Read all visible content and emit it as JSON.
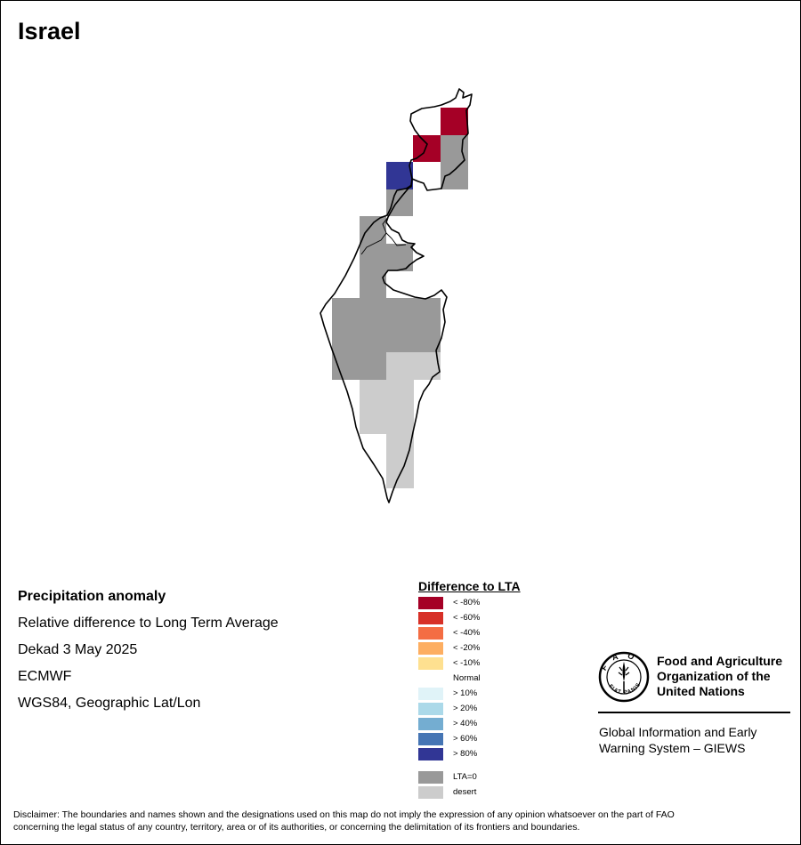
{
  "page": {
    "title": "Israel"
  },
  "info": {
    "heading": "Precipitation anomaly",
    "line1": "Relative difference to Long Term Average",
    "line2": "Dekad 3 May 2025",
    "line3": "ECMWF",
    "line4": "WGS84, Geographic Lat/Lon"
  },
  "legend": {
    "title": "Difference to LTA",
    "items": [
      {
        "label": "< -80%",
        "color": "#a50026"
      },
      {
        "label": "< -60%",
        "color": "#d73027"
      },
      {
        "label": "< -40%",
        "color": "#f46d43"
      },
      {
        "label": "< -20%",
        "color": "#fdae61"
      },
      {
        "label": "< -10%",
        "color": "#fee090"
      },
      {
        "label": "Normal",
        "color": "#ffffff"
      },
      {
        "label": "> 10%",
        "color": "#e0f3f8"
      },
      {
        "label": "> 20%",
        "color": "#abd9e9"
      },
      {
        "label": "> 40%",
        "color": "#74add1"
      },
      {
        "label": "> 60%",
        "color": "#4575b4"
      },
      {
        "label": "> 80%",
        "color": "#313695"
      },
      {
        "label": "LTA=0",
        "color": "#999999"
      },
      {
        "label": "desert",
        "color": "#cccccc"
      }
    ]
  },
  "fao": {
    "name_line1": "Food and Agriculture",
    "name_line2": "Organization of the",
    "name_line3": "United Nations",
    "logo_ring_text": "FIAT PANIS",
    "logo_letters": "FAO",
    "giews_line1": "Global Information and Early",
    "giews_line2": "Warning System – GIEWS"
  },
  "disclaimer": {
    "line1": "Disclaimer: The boundaries and names shown and the designations used on this map do not imply the expression of any opinion whatsoever on the part of FAO",
    "line2": "concerning the legal status of any country, territory, area or of its authorities, or concerning the delimitation of its frontiers and boundaries."
  }
}
